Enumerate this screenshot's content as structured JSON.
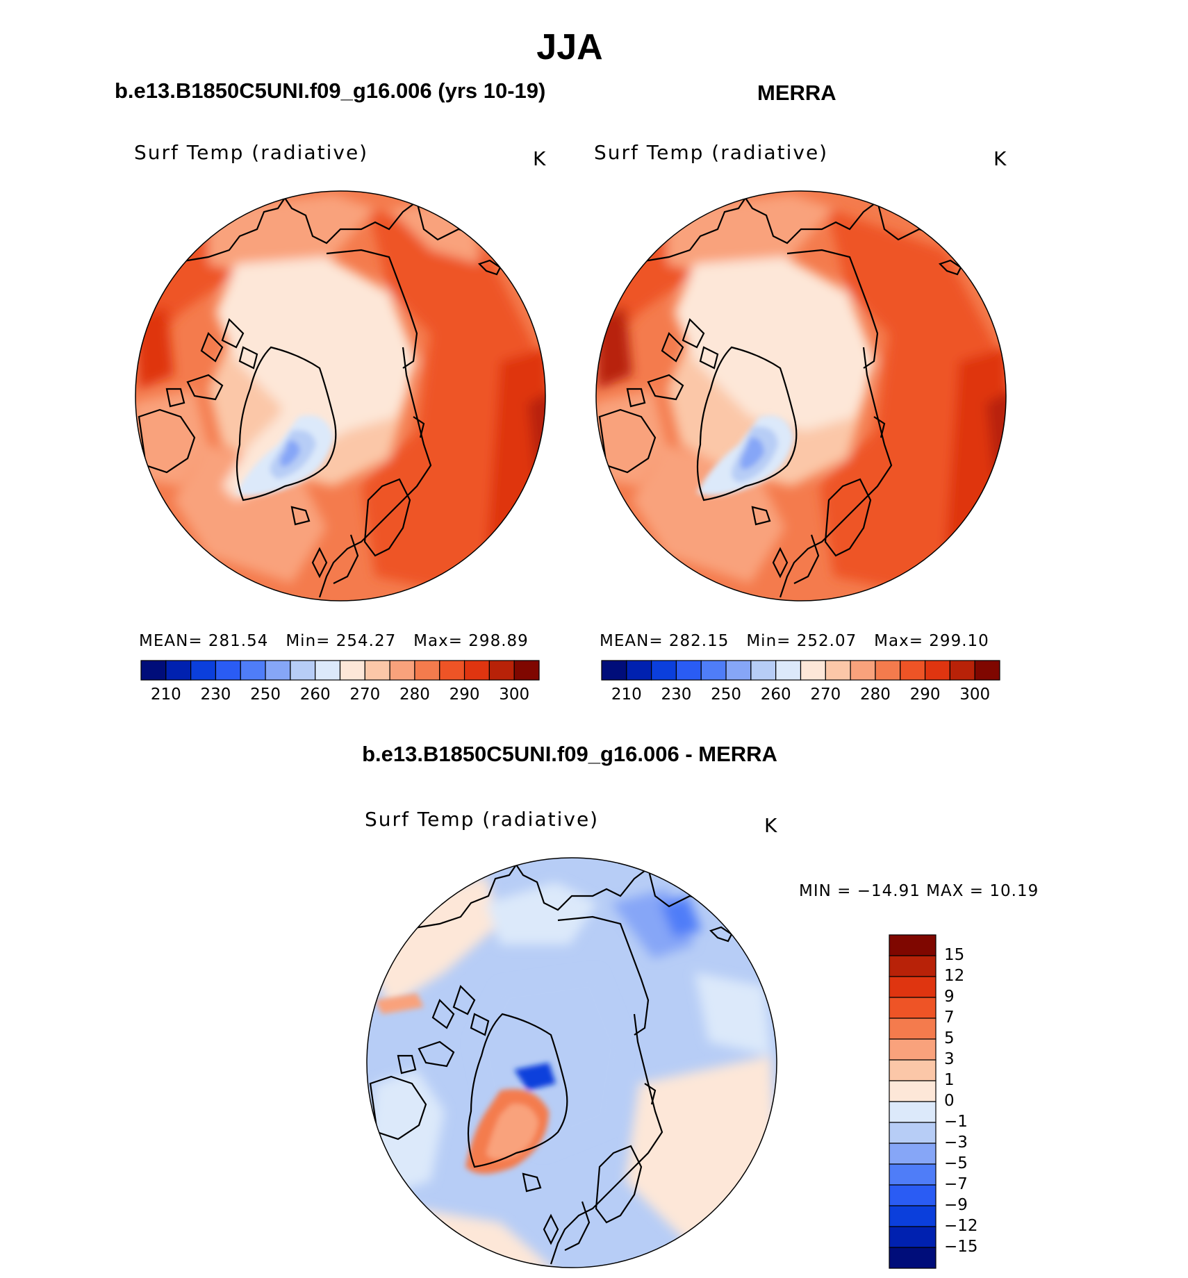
{
  "title": "JJA",
  "panels": [
    {
      "header": "b.e13.B1850C5UNI.f09_g16.006 (yrs 10-19)",
      "variable": "Surf Temp (radiative)",
      "unit": "K",
      "stats": {
        "mean_label": "MEAN=",
        "mean": "281.54",
        "min_label": "Min=",
        "min": "254.27",
        "max_label": "Max=",
        "max": "298.89"
      },
      "colorbar_ticks": [
        "210",
        "230",
        "250",
        "260",
        "270",
        "280",
        "290",
        "300"
      ]
    },
    {
      "header": "MERRA",
      "variable": "Surf Temp (radiative)",
      "unit": "K",
      "stats": {
        "mean_label": "MEAN=",
        "mean": "282.15",
        "min_label": "Min=",
        "min": "252.07",
        "max_label": "Max=",
        "max": "299.10"
      },
      "colorbar_ticks": [
        "210",
        "230",
        "250",
        "260",
        "270",
        "280",
        "290",
        "300"
      ]
    }
  ],
  "difference": {
    "header": "b.e13.B1850C5UNI.f09_g16.006 - MERRA",
    "variable": "Surf Temp (radiative)",
    "unit": "K",
    "min_max": "MIN = −14.91  MAX =   10.19",
    "colorbar_ticks": [
      "15",
      "12",
      "9",
      "7",
      "5",
      "3",
      "1",
      "0",
      "−1",
      "−3",
      "−5",
      "−7",
      "−9",
      "−12",
      "−15"
    ]
  },
  "colors": {
    "abs_scale": [
      "#000d7a",
      "#0021b0",
      "#0b3fdc",
      "#2a5cf4",
      "#4f7df8",
      "#86a6f7",
      "#b7cdf6",
      "#dce9fa",
      "#fde7d8",
      "#fbc7a8",
      "#f9a27c",
      "#f47b4d",
      "#ee5426",
      "#df3510",
      "#b82208",
      "#7f0700"
    ],
    "diff_scale": [
      "#7f0700",
      "#b82208",
      "#df3510",
      "#ee5426",
      "#f47b4d",
      "#f9a27c",
      "#fbc7a8",
      "#fde7d8",
      "#dce9fa",
      "#b7cdf6",
      "#86a6f7",
      "#4f7df8",
      "#2a5cf4",
      "#0b3fdc",
      "#0021b0",
      "#000d7a"
    ]
  }
}
